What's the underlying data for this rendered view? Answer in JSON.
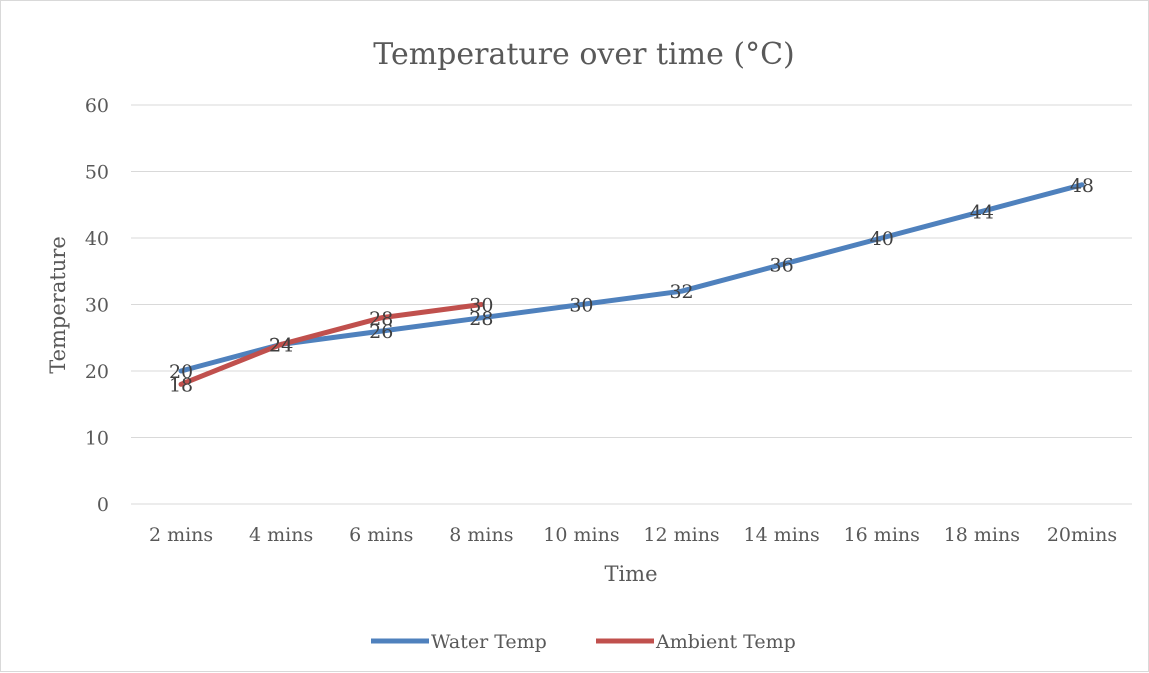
{
  "chart_data": {
    "type": "line",
    "title": "Temperature over time (°C)",
    "xlabel": "Time",
    "ylabel": "Temperature",
    "ylim": [
      0,
      60
    ],
    "yticks": [
      0,
      10,
      20,
      30,
      40,
      50,
      60
    ],
    "grid": true,
    "legend_position": "bottom",
    "categories": [
      "2 mins",
      "4 mins",
      "6 mins",
      "8 mins",
      "10 mins",
      "12 mins",
      "14 mins",
      "16 mins",
      "18 mins",
      "20mins"
    ],
    "series": [
      {
        "name": "Water Temp",
        "color": "#4f81bd",
        "values": [
          20,
          24,
          26,
          28,
          30,
          32,
          36,
          40,
          44,
          48
        ]
      },
      {
        "name": "Ambient Temp",
        "color": "#c0504d",
        "values": [
          18,
          24,
          28,
          30,
          null,
          null,
          null,
          null,
          null,
          null
        ]
      }
    ]
  }
}
